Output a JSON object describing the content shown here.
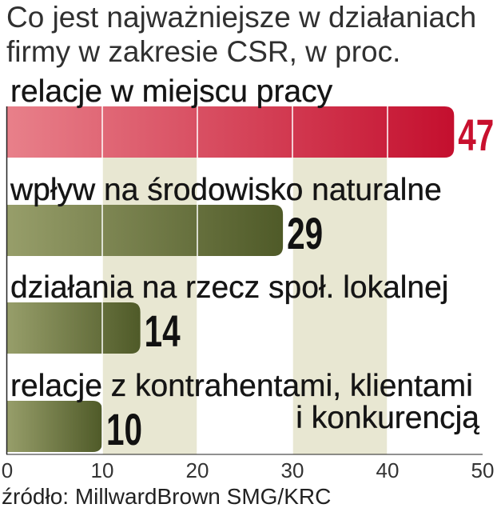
{
  "chart_data": {
    "type": "bar",
    "orientation": "horizontal",
    "title": [
      "Co jest najważniejsze w działaniach",
      "firmy w zakresie CSR, w proc."
    ],
    "categories": [
      "relacje w miejscu pracy",
      "wpływ na środowisko naturalne",
      "działania na rzecz społ. lokalnej",
      "relacje z kontrahentami, klientami i konkurencją"
    ],
    "values": [
      47,
      29,
      14,
      10
    ],
    "xlim": [
      0,
      50
    ],
    "xticks": [
      0,
      10,
      20,
      30,
      40,
      50
    ],
    "grid": true,
    "source": "źródło: MillwardBrown SMG/KRC",
    "colors": {
      "bar_gradients": [
        [
          "#e8808a",
          "#c40f2e"
        ],
        [
          "#979e6a",
          "#4f5a28"
        ],
        [
          "#979e6a",
          "#4f5a28"
        ],
        [
          "#979e6a",
          "#4f5a28"
        ]
      ],
      "value_labels": [
        "#c8102e",
        "#111111",
        "#111111",
        "#111111"
      ],
      "grid_band": "#e8e7d2",
      "grid_line": "#ffffff",
      "axis": "#222222"
    }
  }
}
